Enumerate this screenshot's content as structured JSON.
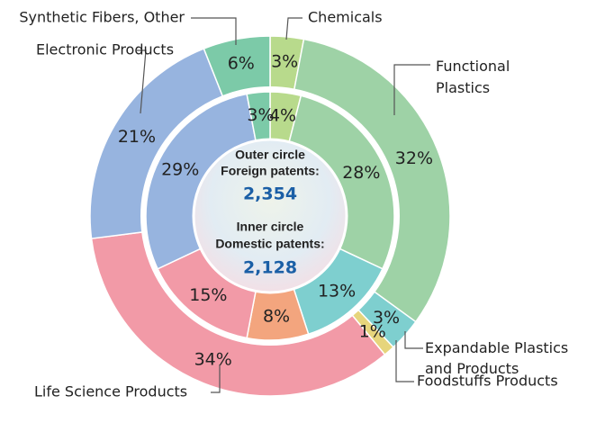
{
  "chart_data": {
    "type": "double-donut",
    "categories": [
      "Chemicals",
      "Functional Plastics",
      "Expandable Plastics and Products",
      "Foodstuffs Products",
      "Life Science Products",
      "Electronic Products",
      "Synthetic Fibers, Other"
    ],
    "series": [
      {
        "name": "Outer circle",
        "values": [
          3,
          32,
          3,
          1,
          34,
          21,
          6
        ],
        "value_labels": [
          "3%",
          "32%",
          "3%",
          "1%",
          "34%",
          "21%",
          "6%"
        ],
        "colors": [
          "#b8da8c",
          "#9ed2a6",
          "#7ecfcf",
          "#e6d57c",
          "#f29aa7",
          "#97b4df",
          "#7ccaa8"
        ]
      },
      {
        "name": "Inner circle",
        "values": [
          4,
          28,
          13,
          8,
          15,
          29,
          3
        ],
        "value_labels": [
          "4%",
          "28%",
          "13%",
          "8%",
          "15%",
          "29%",
          "3%"
        ],
        "colors": [
          "#b8da8c",
          "#9ed2a6",
          "#7ecfcf",
          "#f3a57e",
          "#f29aa7",
          "#97b4df",
          "#7ccaa8"
        ]
      }
    ],
    "center": {
      "outer_title": "Outer circle",
      "outer_subtitle": "Foreign patents:",
      "outer_total": "2,354",
      "inner_title": "Inner circle",
      "inner_subtitle": "Domestic patents:",
      "inner_total": "2,128"
    }
  }
}
